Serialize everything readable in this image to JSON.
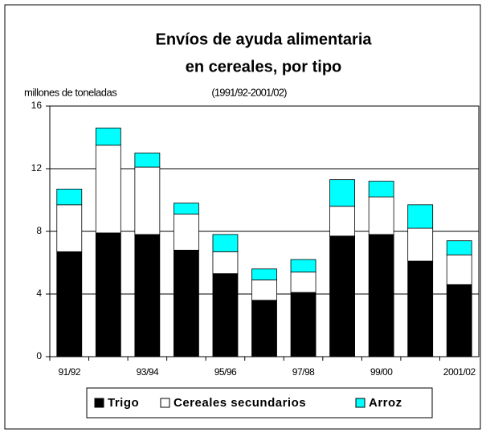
{
  "chart_data": {
    "type": "stacked_bar",
    "title": [
      "Envíos de ayuda alimentaria",
      "en cereales, por tipo"
    ],
    "subtitle": "(1991/92-2001/02)",
    "y_label": "millones de toneladas",
    "categories": [
      "91/92",
      null,
      "93/94",
      null,
      "95/96",
      null,
      "97/98",
      null,
      "99/00",
      null,
      "2001/02"
    ],
    "series": [
      {
        "name": "Trigo",
        "color": "#000000",
        "values": [
          6.7,
          7.9,
          7.8,
          6.8,
          5.3,
          3.6,
          4.1,
          7.7,
          7.8,
          6.1,
          4.6
        ]
      },
      {
        "name": "Cereales secundarios",
        "color": "#ffffff",
        "values": [
          3.0,
          5.6,
          4.3,
          2.3,
          1.4,
          1.3,
          1.3,
          1.9,
          2.4,
          2.1,
          1.9
        ]
      },
      {
        "name": "Arroz",
        "color": "#00ffff",
        "values": [
          1.0,
          1.1,
          0.9,
          0.7,
          1.1,
          0.7,
          0.8,
          1.7,
          1.0,
          1.5,
          0.9
        ]
      }
    ],
    "ylim": [
      0,
      16
    ],
    "yticks": [
      0,
      4,
      8,
      12,
      16
    ],
    "grid": true,
    "legend": "bottom"
  }
}
